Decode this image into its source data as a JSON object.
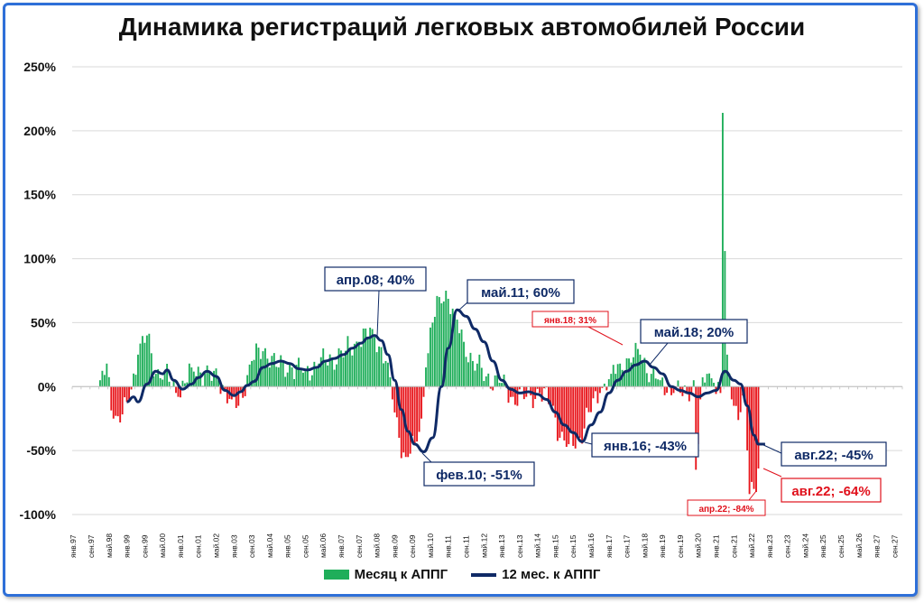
{
  "title": "Динамика регистраций легковых автомобилей России",
  "colors": {
    "positive": "#1fae5a",
    "negative": "#e8161c",
    "line": "#0f2a66",
    "grid": "#d9d9d9"
  },
  "legend": {
    "bar_label": "Месяц к АППГ",
    "line_label": "12 мес. к АППГ"
  },
  "chart_data": {
    "type": "bar",
    "ylim": [
      -100,
      250
    ],
    "y_ticks": [
      "250%",
      "200%",
      "150%",
      "100%",
      "50%",
      "0%",
      "-50%",
      "-100%"
    ],
    "y_tick_values": [
      250,
      200,
      150,
      100,
      50,
      0,
      -50,
      -100
    ],
    "x_ticks": [
      "янв.97",
      "сен.97",
      "май.98",
      "янв.99",
      "сен.99",
      "май.00",
      "янв.01",
      "сен.01",
      "май.02",
      "янв.03",
      "сен.03",
      "май.04",
      "янв.05",
      "сен.05",
      "май.06",
      "янв.07",
      "сен.07",
      "май.08",
      "янв.09",
      "сен.09",
      "май.10",
      "янв.11",
      "сен.11",
      "май.12",
      "янв.13",
      "сен.13",
      "май.14",
      "янв.15",
      "сен.15",
      "май.16",
      "янв.17",
      "сен.17",
      "май.18",
      "янв.19",
      "сен.19",
      "май.20",
      "янв.21",
      "сен.21",
      "май.22",
      "янв.23",
      "сен.23",
      "май.24",
      "янв.25",
      "сен.25",
      "май.26",
      "янв.27",
      "сен.27"
    ],
    "grid": "horizontal",
    "legend_placement": "bottom",
    "series": [
      {
        "name": "Месяц к АППГ",
        "type": "bar",
        "knots": [
          [
            "1998-01",
            5
          ],
          [
            "1998-04",
            18
          ],
          [
            "1998-07",
            -25
          ],
          [
            "1998-10",
            -28
          ],
          [
            "1999-02",
            -10
          ],
          [
            "1999-06",
            25
          ],
          [
            "1999-10",
            40
          ],
          [
            "2000-02",
            10
          ],
          [
            "2000-06",
            12
          ],
          [
            "2000-12",
            -8
          ],
          [
            "2001-06",
            15
          ],
          [
            "2001-12",
            10
          ],
          [
            "2002-06",
            5
          ],
          [
            "2002-12",
            -10
          ],
          [
            "2003-03",
            -15
          ],
          [
            "2003-09",
            20
          ],
          [
            "2004-03",
            30
          ],
          [
            "2004-09",
            15
          ],
          [
            "2005-03",
            15
          ],
          [
            "2005-09",
            12
          ],
          [
            "2006-03",
            18
          ],
          [
            "2006-09",
            22
          ],
          [
            "2007-03",
            28
          ],
          [
            "2007-09",
            35
          ],
          [
            "2008-03",
            45
          ],
          [
            "2008-09",
            20
          ],
          [
            "2008-12",
            -10
          ],
          [
            "2009-03",
            -40
          ],
          [
            "2009-06",
            -55
          ],
          [
            "2009-10",
            -45
          ],
          [
            "2010-01",
            -25
          ],
          [
            "2010-03",
            15
          ],
          [
            "2010-06",
            50
          ],
          [
            "2010-09",
            70
          ],
          [
            "2010-12",
            75
          ],
          [
            "2011-04",
            55
          ],
          [
            "2011-08",
            35
          ],
          [
            "2011-12",
            20
          ],
          [
            "2012-06",
            8
          ],
          [
            "2012-12",
            3
          ],
          [
            "2013-06",
            -8
          ],
          [
            "2013-12",
            -8
          ],
          [
            "2014-06",
            -5
          ],
          [
            "2014-12",
            -15
          ],
          [
            "2015-03",
            -40
          ],
          [
            "2015-07",
            -45
          ],
          [
            "2015-12",
            -40
          ],
          [
            "2016-04",
            -20
          ],
          [
            "2016-09",
            -5
          ],
          [
            "2017-02",
            10
          ],
          [
            "2017-06",
            18
          ],
          [
            "2017-10",
            22
          ],
          [
            "2018-03",
            25
          ],
          [
            "2018-08",
            10
          ],
          [
            "2018-12",
            5
          ],
          [
            "2019-06",
            -5
          ],
          [
            "2019-12",
            -5
          ],
          [
            "2020-03",
            5
          ],
          [
            "2020-04",
            -65
          ],
          [
            "2020-05",
            -45
          ],
          [
            "2020-06",
            -10
          ],
          [
            "2020-09",
            10
          ],
          [
            "2020-12",
            3
          ],
          [
            "2021-03",
            -5
          ],
          [
            "2021-04",
            214
          ],
          [
            "2021-05",
            106
          ],
          [
            "2021-06",
            25
          ],
          [
            "2021-09",
            -15
          ],
          [
            "2021-12",
            -20
          ],
          [
            "2022-02",
            -10
          ],
          [
            "2022-04",
            -84
          ],
          [
            "2022-06",
            -80
          ],
          [
            "2022-08",
            -64
          ]
        ]
      },
      {
        "name": "12 мес. к АППГ",
        "type": "line",
        "points": [
          [
            "1999-01",
            -12
          ],
          [
            "1999-04",
            -8
          ],
          [
            "1999-06",
            -12
          ],
          [
            "1999-10",
            2
          ],
          [
            "2000-02",
            12
          ],
          [
            "2000-05",
            10
          ],
          [
            "2000-07",
            13
          ],
          [
            "2000-10",
            5
          ],
          [
            "2001-02",
            -2
          ],
          [
            "2001-06",
            2
          ],
          [
            "2001-09",
            7
          ],
          [
            "2002-01",
            12
          ],
          [
            "2002-05",
            8
          ],
          [
            "2002-09",
            -3
          ],
          [
            "2003-01",
            -7
          ],
          [
            "2003-04",
            -4
          ],
          [
            "2003-07",
            1
          ],
          [
            "2003-10",
            4
          ],
          [
            "2004-02",
            15
          ],
          [
            "2004-06",
            18
          ],
          [
            "2004-10",
            20
          ],
          [
            "2005-02",
            18
          ],
          [
            "2005-06",
            14
          ],
          [
            "2005-10",
            13
          ],
          [
            "2006-02",
            15
          ],
          [
            "2006-06",
            20
          ],
          [
            "2006-10",
            22
          ],
          [
            "2007-02",
            25
          ],
          [
            "2007-06",
            30
          ],
          [
            "2007-10",
            34
          ],
          [
            "2008-01",
            38
          ],
          [
            "2008-04",
            40
          ],
          [
            "2008-07",
            36
          ],
          [
            "2008-10",
            25
          ],
          [
            "2009-01",
            5
          ],
          [
            "2009-04",
            -18
          ],
          [
            "2009-07",
            -35
          ],
          [
            "2009-10",
            -45
          ],
          [
            "2010-02",
            -51
          ],
          [
            "2010-06",
            -40
          ],
          [
            "2010-10",
            0
          ],
          [
            "2011-01",
            30
          ],
          [
            "2011-05",
            60
          ],
          [
            "2011-09",
            55
          ],
          [
            "2012-01",
            45
          ],
          [
            "2012-05",
            35
          ],
          [
            "2012-09",
            20
          ],
          [
            "2013-01",
            5
          ],
          [
            "2013-05",
            -2
          ],
          [
            "2013-09",
            -5
          ],
          [
            "2014-01",
            -4
          ],
          [
            "2014-05",
            -6
          ],
          [
            "2014-09",
            -10
          ],
          [
            "2015-01",
            -20
          ],
          [
            "2015-05",
            -30
          ],
          [
            "2015-09",
            -36
          ],
          [
            "2016-01",
            -43
          ],
          [
            "2016-05",
            -30
          ],
          [
            "2016-09",
            -20
          ],
          [
            "2017-01",
            -5
          ],
          [
            "2017-05",
            5
          ],
          [
            "2017-09",
            12
          ],
          [
            "2018-01",
            17
          ],
          [
            "2018-05",
            20
          ],
          [
            "2018-09",
            15
          ],
          [
            "2019-01",
            10
          ],
          [
            "2019-05",
            0
          ],
          [
            "2019-09",
            -3
          ],
          [
            "2020-01",
            -5
          ],
          [
            "2020-05",
            -8
          ],
          [
            "2020-09",
            -5
          ],
          [
            "2021-01",
            -3
          ],
          [
            "2021-05",
            12
          ],
          [
            "2021-09",
            5
          ],
          [
            "2021-12",
            2
          ],
          [
            "2022-03",
            -15
          ],
          [
            "2022-06",
            -38
          ],
          [
            "2022-08",
            -45
          ],
          [
            "2022-11",
            -45
          ]
        ]
      }
    ],
    "annotations": {
      "apr08": "апр.08; 40%",
      "may11": "май.11; 60%",
      "jan18_small": "янв.18; 31%",
      "may18": "май.18; 20%",
      "feb10": "фев.10; -51%",
      "jan16": "янв.16; -43%",
      "aug22_line": "авг.22; -45%",
      "aug22_bar": "авг.22; -64%",
      "apr22_small": "апр.22; -84%"
    }
  }
}
